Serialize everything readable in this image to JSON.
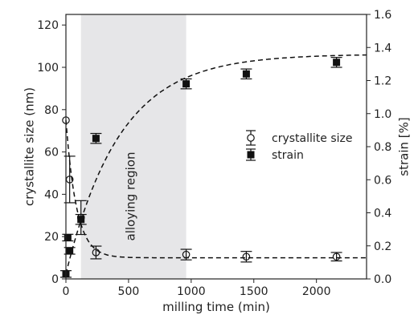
{
  "chart_data": {
    "type": "scatter",
    "xlabel": "milling time (min)",
    "ylabel_left": "crystallite size (nm)",
    "ylabel_right": "strain [%]",
    "xlim": [
      0,
      2400
    ],
    "ylim_left": [
      0,
      125
    ],
    "ylim_right": [
      0,
      1.6
    ],
    "x_ticks": [
      0,
      500,
      1000,
      1500,
      2000
    ],
    "y_ticks_left": [
      0,
      20,
      40,
      60,
      80,
      100,
      120
    ],
    "y_ticks_right": [
      0.0,
      0.2,
      0.4,
      0.6,
      0.8,
      1.0,
      1.2,
      1.4,
      1.6
    ],
    "grid": false,
    "region": {
      "label": "alloying region",
      "x_start": 120,
      "x_end": 960,
      "color": "#e6e6e8"
    },
    "legend_position": "center-right",
    "series": [
      {
        "name": "crystallite size",
        "axis": "left",
        "marker": "open-circle",
        "points": [
          {
            "x": 0,
            "y": 75,
            "err": 0
          },
          {
            "x": 30,
            "y": 47,
            "err": 11
          },
          {
            "x": 120,
            "y": 29,
            "err": 8
          },
          {
            "x": 240,
            "y": 12.5,
            "err": 3
          },
          {
            "x": 960,
            "y": 11.5,
            "err": 2.5
          },
          {
            "x": 1440,
            "y": 10.5,
            "err": 2.5
          },
          {
            "x": 2160,
            "y": 10.5,
            "err": 2
          }
        ]
      },
      {
        "name": "strain",
        "axis": "right",
        "marker": "filled-square",
        "points": [
          {
            "x": 0,
            "y": 0.03,
            "err": 0.02
          },
          {
            "x": 15,
            "y": 0.25,
            "err": 0.02
          },
          {
            "x": 30,
            "y": 0.17,
            "err": 0.02
          },
          {
            "x": 120,
            "y": 0.36,
            "err": 0.03
          },
          {
            "x": 240,
            "y": 0.85,
            "err": 0.03
          },
          {
            "x": 960,
            "y": 1.18,
            "err": 0.03
          },
          {
            "x": 1440,
            "y": 1.24,
            "err": 0.03
          },
          {
            "x": 2160,
            "y": 1.31,
            "err": 0.03
          }
        ]
      }
    ],
    "fits": [
      {
        "series": "crystallite size",
        "axis": "left",
        "style": "dashed"
      },
      {
        "series": "strain",
        "axis": "right",
        "style": "dashed"
      }
    ]
  }
}
